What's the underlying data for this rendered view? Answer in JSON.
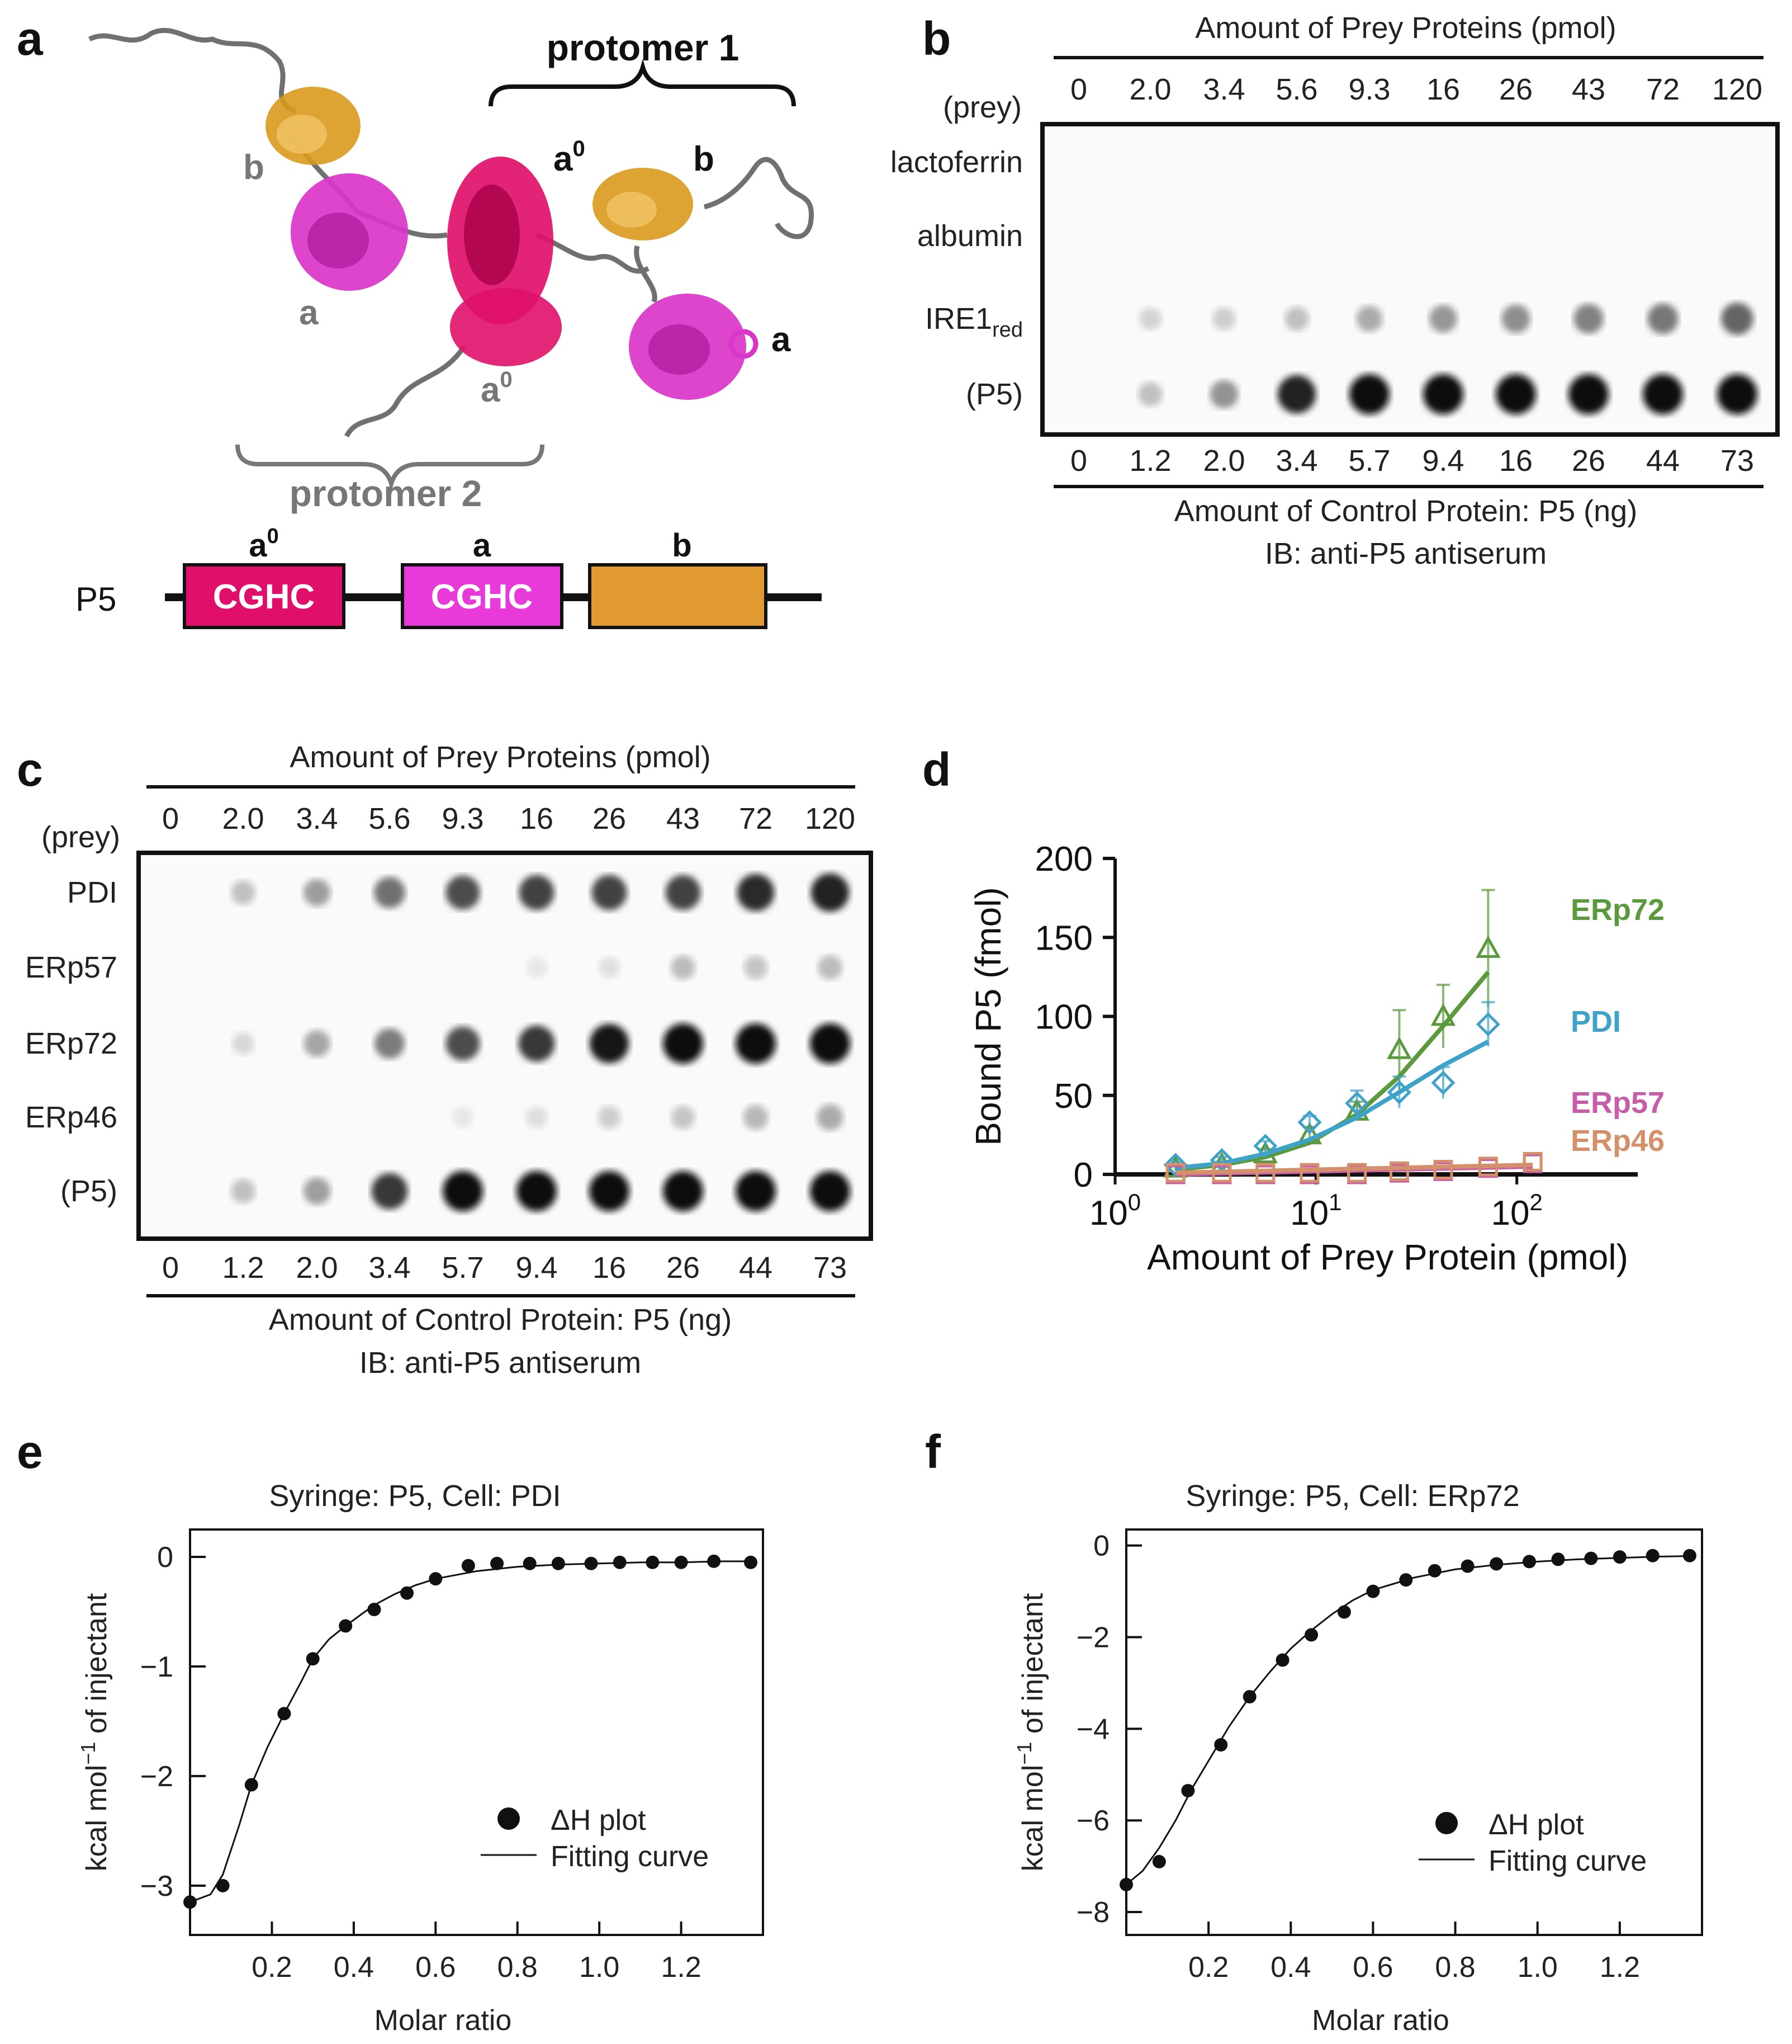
{
  "panel_labels": {
    "a": "a",
    "b": "b",
    "c": "c",
    "d": "d",
    "e": "e",
    "f": "f"
  },
  "panel_a": {
    "protomer1": "protomer 1",
    "protomer2": "protomer 2",
    "domain_labels": [
      "b",
      "a",
      "a",
      "b",
      "a",
      "a",
      "b"
    ],
    "a0_base": "a",
    "a0_sup": "0",
    "construct": {
      "name": "P5",
      "domains": [
        {
          "top_label_base": "a",
          "top_label_sup": "0",
          "text": "CGHC",
          "color": "#e0106a"
        },
        {
          "top_label_base": "a",
          "top_label_sup": "",
          "text": "CGHC",
          "color": "#e83ad8"
        },
        {
          "top_label_base": "b",
          "top_label_sup": "",
          "text": "",
          "color": "#e09a30"
        }
      ]
    },
    "colors": {
      "a0": "#e0106a",
      "a": "#d935c8",
      "b": "#d99a1e",
      "linker": "#707070"
    }
  },
  "panel_b": {
    "top_title": "Amount of Prey Proteins (pmol)",
    "prey_header": "(prey)",
    "prey_amounts": [
      "0",
      "2.0",
      "3.4",
      "5.6",
      "9.3",
      "16",
      "26",
      "43",
      "72",
      "120"
    ],
    "rows": [
      {
        "label": "lactoferrin",
        "sub": "",
        "intensity": [
          0,
          0,
          0,
          0,
          0,
          0,
          0,
          0,
          0,
          0
        ]
      },
      {
        "label": "albumin",
        "sub": "",
        "intensity": [
          0,
          0,
          0,
          0,
          0,
          0,
          0,
          0,
          0,
          0
        ]
      },
      {
        "label": "IRE1",
        "sub": "red",
        "intensity": [
          0,
          0.12,
          0.14,
          0.2,
          0.3,
          0.38,
          0.42,
          0.48,
          0.52,
          0.6
        ]
      },
      {
        "label": "(P5)",
        "sub": "",
        "intensity": [
          0,
          0.2,
          0.4,
          0.9,
          1,
          1,
          1,
          1,
          1,
          1
        ]
      }
    ],
    "control_amounts": [
      "0",
      "1.2",
      "2.0",
      "3.4",
      "5.7",
      "9.4",
      "16",
      "26",
      "44",
      "73"
    ],
    "bottom_title": "Amount of Control Protein: P5 (ng)",
    "ib_label": "IB: anti-P5 antiserum"
  },
  "panel_c": {
    "top_title": "Amount of Prey Proteins (pmol)",
    "prey_header": "(prey)",
    "prey_amounts": [
      "0",
      "2.0",
      "3.4",
      "5.6",
      "9.3",
      "16",
      "26",
      "43",
      "72",
      "120"
    ],
    "rows": [
      {
        "label": "PDI",
        "intensity": [
          0,
          0.2,
          0.35,
          0.55,
          0.7,
          0.75,
          0.75,
          0.75,
          0.85,
          0.9
        ]
      },
      {
        "label": "ERp57",
        "intensity": [
          0,
          0,
          0,
          0,
          0,
          0.03,
          0.06,
          0.22,
          0.18,
          0.22
        ]
      },
      {
        "label": "ERp72",
        "intensity": [
          0,
          0.1,
          0.32,
          0.5,
          0.7,
          0.8,
          0.95,
          1,
          1,
          1
        ]
      },
      {
        "label": "ERp46",
        "intensity": [
          0,
          0,
          0,
          0,
          0.03,
          0.07,
          0.14,
          0.18,
          0.24,
          0.3
        ]
      },
      {
        "label": "(P5)",
        "intensity": [
          0,
          0.2,
          0.35,
          0.8,
          1,
          1,
          1,
          1,
          1,
          1
        ]
      }
    ],
    "control_amounts": [
      "0",
      "1.2",
      "2.0",
      "3.4",
      "5.7",
      "9.4",
      "16",
      "26",
      "44",
      "73"
    ],
    "bottom_title": "Amount of Control Protein: P5 (ng)",
    "ib_label": "IB: anti-P5 antiserum"
  },
  "chart_data": [
    {
      "id": "d",
      "type": "scatter",
      "title": "",
      "xlabel": "Amount of Prey Protein (pmol)",
      "ylabel": "Bound P5 (fmol)",
      "xscale": "log",
      "xlim": [
        1,
        400
      ],
      "ylim": [
        0,
        200
      ],
      "yticks": [
        0,
        50,
        100,
        150,
        200
      ],
      "xtick_base": "10",
      "xtick_exponents": [
        "0",
        "1",
        "2"
      ],
      "series": [
        {
          "name": "ERp72",
          "color": "#5a9a3c",
          "marker": "triangle",
          "x": [
            2,
            3.4,
            5.6,
            9.3,
            16,
            26,
            43,
            72
          ],
          "y": [
            4,
            6,
            13,
            25,
            40,
            79,
            100,
            143
          ],
          "err": [
            2,
            2,
            3,
            5,
            6,
            25,
            20,
            37
          ],
          "fit_x": [
            2,
            3.4,
            5.6,
            9.3,
            16,
            26,
            43,
            72
          ],
          "fit_y": [
            3,
            6,
            11,
            20,
            38,
            62,
            94,
            128
          ]
        },
        {
          "name": "PDI",
          "color": "#3fa2c8",
          "marker": "diamond",
          "x": [
            2,
            3.4,
            5.6,
            9.3,
            16,
            26,
            43,
            72
          ],
          "y": [
            6,
            9,
            18,
            33,
            45,
            52,
            58,
            95
          ],
          "err": [
            2,
            2,
            3,
            4,
            8,
            10,
            10,
            14
          ],
          "fit_x": [
            2,
            3.4,
            5.6,
            9.3,
            16,
            26,
            43,
            72
          ],
          "fit_y": [
            4,
            7,
            13,
            22,
            36,
            52,
            69,
            84
          ]
        },
        {
          "name": "ERp57",
          "color": "#c75ca8",
          "marker": "square",
          "x": [
            2,
            3.4,
            5.6,
            9.3,
            16,
            26,
            43,
            72,
            120
          ],
          "y": [
            0,
            0,
            0,
            0,
            0,
            1,
            2,
            4,
            7
          ],
          "err": [
            0,
            0,
            0,
            0,
            0,
            0,
            0,
            0,
            0
          ],
          "fit_x": [
            2,
            120
          ],
          "fit_y": [
            0,
            5
          ]
        },
        {
          "name": "ERp46",
          "color": "#d4906a",
          "marker": "square",
          "x": [
            2,
            3.4,
            5.6,
            9.3,
            16,
            26,
            43,
            72,
            120
          ],
          "y": [
            1,
            1,
            1,
            1,
            1,
            2,
            3,
            5,
            8
          ],
          "err": [
            0,
            0,
            0,
            0,
            0,
            0,
            0,
            0,
            0
          ],
          "fit_x": [
            2,
            120
          ],
          "fit_y": [
            1,
            6
          ]
        }
      ]
    },
    {
      "id": "e",
      "type": "scatter",
      "title": "Syringe: P5, Cell: PDI",
      "xlabel": "Molar ratio",
      "ylabel_pre": "kcal mol",
      "ylabel_sup": "−1",
      "ylabel_post": " of injectant",
      "xlim": [
        0,
        1.4
      ],
      "ylim": [
        -3.45,
        0.25
      ],
      "xticks": [
        0.2,
        0.4,
        0.6,
        0.8,
        1.0,
        1.2
      ],
      "xtick_labels": [
        "0.2",
        "0.4",
        "0.6",
        "0.8",
        "1.0",
        "1.2"
      ],
      "yticks": [
        0,
        -1,
        -2,
        -3
      ],
      "ytick_labels": [
        "0",
        "−1",
        "−2",
        "−3"
      ],
      "legend_points": "ΔH plot",
      "legend_fit": "Fitting curve",
      "points_x": [
        0.0,
        0.08,
        0.15,
        0.23,
        0.3,
        0.38,
        0.45,
        0.53,
        0.6,
        0.68,
        0.75,
        0.83,
        0.9,
        0.98,
        1.05,
        1.13,
        1.2,
        1.28,
        1.37
      ],
      "points_y": [
        -3.15,
        -3.0,
        -2.08,
        -1.43,
        -0.93,
        -0.63,
        -0.48,
        -0.33,
        -0.2,
        -0.08,
        -0.06,
        -0.06,
        -0.06,
        -0.06,
        -0.05,
        -0.05,
        -0.05,
        -0.04,
        -0.05
      ],
      "fit_x": [
        0.0,
        0.05,
        0.08,
        0.12,
        0.15,
        0.19,
        0.23,
        0.27,
        0.3,
        0.34,
        0.38,
        0.42,
        0.45,
        0.5,
        0.55,
        0.6,
        0.7,
        0.8,
        0.9,
        1.0,
        1.1,
        1.2,
        1.3,
        1.37
      ],
      "fit_y": [
        -3.15,
        -3.08,
        -2.9,
        -2.45,
        -2.08,
        -1.73,
        -1.43,
        -1.15,
        -0.93,
        -0.75,
        -0.63,
        -0.52,
        -0.44,
        -0.34,
        -0.26,
        -0.2,
        -0.13,
        -0.09,
        -0.07,
        -0.06,
        -0.05,
        -0.05,
        -0.04,
        -0.04
      ]
    },
    {
      "id": "f",
      "type": "scatter",
      "title": "Syringe: P5, Cell: ERp72",
      "xlabel": "Molar ratio",
      "ylabel_pre": "kcal mol",
      "ylabel_sup": "−1",
      "ylabel_post": " of injectant",
      "xlim": [
        0,
        1.4
      ],
      "ylim": [
        -8.5,
        0.35
      ],
      "xticks": [
        0.2,
        0.4,
        0.6,
        0.8,
        1.0,
        1.2
      ],
      "xtick_labels": [
        "0.2",
        "0.4",
        "0.6",
        "0.8",
        "1.0",
        "1.2"
      ],
      "yticks": [
        0,
        -2,
        -4,
        -6,
        -8
      ],
      "ytick_labels": [
        "0",
        "−2",
        "−4",
        "−6",
        "−8"
      ],
      "legend_points": "ΔH plot",
      "legend_fit": "Fitting curve",
      "points_x": [
        0.0,
        0.08,
        0.15,
        0.23,
        0.3,
        0.38,
        0.45,
        0.53,
        0.6,
        0.68,
        0.75,
        0.83,
        0.9,
        0.98,
        1.05,
        1.13,
        1.2,
        1.28,
        1.37
      ],
      "points_y": [
        -7.4,
        -6.9,
        -5.35,
        -4.35,
        -3.3,
        -2.5,
        -1.95,
        -1.45,
        -1.0,
        -0.75,
        -0.55,
        -0.45,
        -0.4,
        -0.35,
        -0.3,
        -0.28,
        -0.25,
        -0.22,
        -0.22
      ],
      "fit_x": [
        0.0,
        0.04,
        0.08,
        0.12,
        0.16,
        0.2,
        0.25,
        0.3,
        0.35,
        0.4,
        0.45,
        0.5,
        0.55,
        0.6,
        0.7,
        0.8,
        0.9,
        1.0,
        1.1,
        1.2,
        1.3,
        1.37
      ],
      "fit_y": [
        -7.4,
        -7.1,
        -6.6,
        -6.0,
        -5.3,
        -4.7,
        -3.95,
        -3.3,
        -2.75,
        -2.25,
        -1.85,
        -1.5,
        -1.2,
        -0.97,
        -0.7,
        -0.52,
        -0.42,
        -0.35,
        -0.3,
        -0.27,
        -0.24,
        -0.23
      ]
    }
  ]
}
